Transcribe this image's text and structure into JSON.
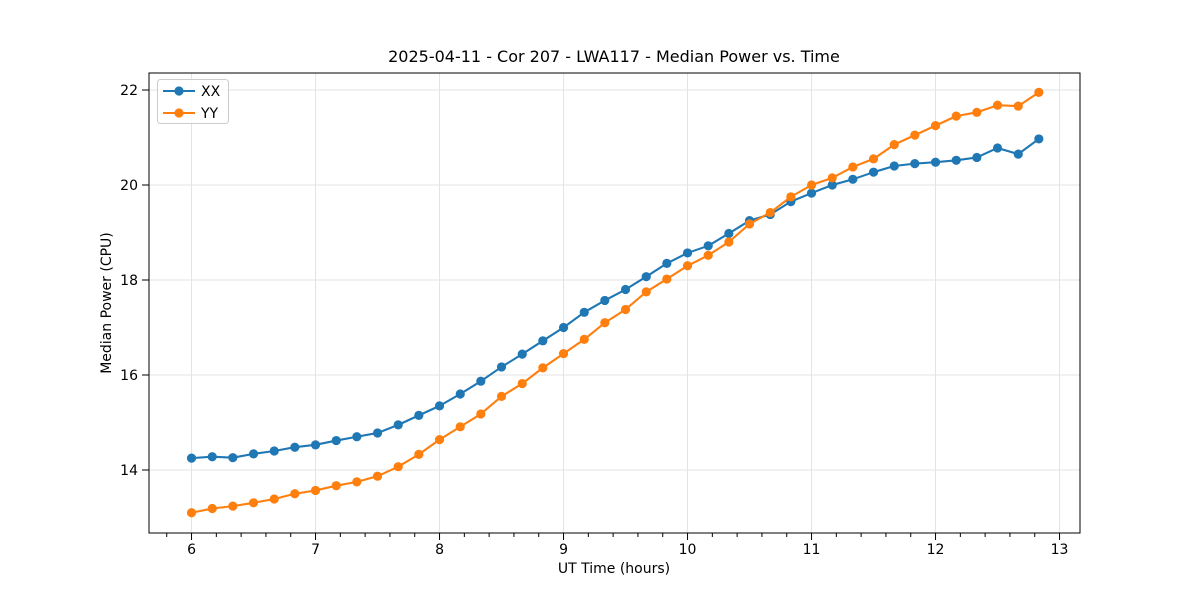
{
  "chart_data": {
    "type": "line",
    "title": "2025-04-11 - Cor 207 - LWA117 - Median Power vs. Time",
    "xlabel": "UT Time (hours)",
    "ylabel": "Median Power (CPU)",
    "xlim": [
      5.657,
      13.165
    ],
    "ylim": [
      12.674,
      22.358
    ],
    "xticks": [
      6,
      7,
      8,
      9,
      10,
      11,
      12,
      13
    ],
    "yticks": [
      14,
      16,
      18,
      20,
      22
    ],
    "x_minor_tick_step": 0.2,
    "grid": true,
    "legend_position": "upper-left",
    "marker": "circle",
    "x": [
      6.0,
      6.167,
      6.333,
      6.5,
      6.667,
      6.833,
      7.0,
      7.167,
      7.333,
      7.5,
      7.667,
      7.833,
      8.0,
      8.167,
      8.333,
      8.5,
      8.667,
      8.833,
      9.0,
      9.167,
      9.333,
      9.5,
      9.667,
      9.833,
      10.0,
      10.167,
      10.333,
      10.5,
      10.667,
      10.833,
      11.0,
      11.167,
      11.333,
      11.5,
      11.667,
      11.833,
      12.0,
      12.167,
      12.333,
      12.5,
      12.667,
      12.833
    ],
    "series": [
      {
        "name": "XX",
        "color": "#1f77b4",
        "values": [
          14.25,
          14.28,
          14.26,
          14.34,
          14.4,
          14.48,
          14.53,
          14.62,
          14.7,
          14.78,
          14.95,
          15.15,
          15.35,
          15.6,
          15.87,
          16.17,
          16.44,
          16.72,
          17.0,
          17.32,
          17.57,
          17.8,
          18.07,
          18.35,
          18.57,
          18.72,
          18.98,
          19.25,
          19.38,
          19.65,
          19.83,
          20.0,
          20.12,
          20.27,
          20.4,
          20.45,
          20.48,
          20.52,
          20.58,
          20.78,
          20.65,
          20.97
        ]
      },
      {
        "name": "YY",
        "color": "#ff7f0e",
        "values": [
          13.1,
          13.19,
          13.24,
          13.31,
          13.39,
          13.5,
          13.57,
          13.67,
          13.75,
          13.87,
          14.07,
          14.33,
          14.64,
          14.91,
          15.18,
          15.55,
          15.82,
          16.15,
          16.45,
          16.75,
          17.1,
          17.38,
          17.75,
          18.02,
          18.3,
          18.52,
          18.8,
          19.18,
          19.42,
          19.75,
          20.0,
          20.15,
          20.38,
          20.55,
          20.85,
          21.05,
          21.25,
          21.45,
          21.53,
          21.68,
          21.66,
          21.95
        ]
      }
    ]
  }
}
